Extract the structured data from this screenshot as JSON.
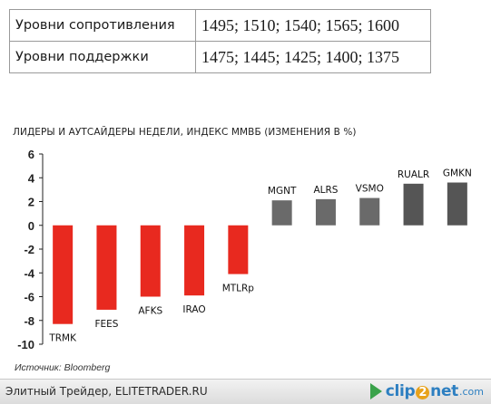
{
  "levels_table": {
    "rows": [
      {
        "label": "Уровни сопротивления",
        "values": "1495; 1510; 1540; 1565; 1600"
      },
      {
        "label": "Уровни поддержки",
        "values": "1475; 1445; 1425; 1400; 1375"
      }
    ]
  },
  "chart_data": {
    "type": "bar",
    "title": "ЛИДЕРЫ И АУТСАЙДЕРЫ НЕДЕЛИ, ИНДЕКС ММВБ (ИЗМЕНЕНИЯ В %)",
    "xlabel": "",
    "ylabel": "",
    "ylim": [
      -10,
      6
    ],
    "yticks": [
      6,
      4,
      2,
      0,
      -2,
      -4,
      -6,
      -8,
      -10
    ],
    "grid": false,
    "legend": "none",
    "categories": [
      "TRMK",
      "FEES",
      "AFKS",
      "IRAO",
      "MTLRp",
      "MGNT",
      "ALRS",
      "VSMO",
      "RUALR",
      "GMKN"
    ],
    "values": [
      -8.3,
      -7.1,
      -6.0,
      -5.9,
      -4.1,
      2.1,
      2.2,
      2.3,
      3.5,
      3.6
    ],
    "colors": {
      "negative": "#e8291f",
      "positive_mid": "#6a6a6a",
      "positive_top": "#555555"
    }
  },
  "source": "Источник: Bloomberg",
  "footer": {
    "site_text": "Элитный Трейдер, ELITETRADER.RU",
    "logo": {
      "part1": "clip",
      "part2": "2",
      "part3": "net",
      "part4": ".com"
    }
  }
}
